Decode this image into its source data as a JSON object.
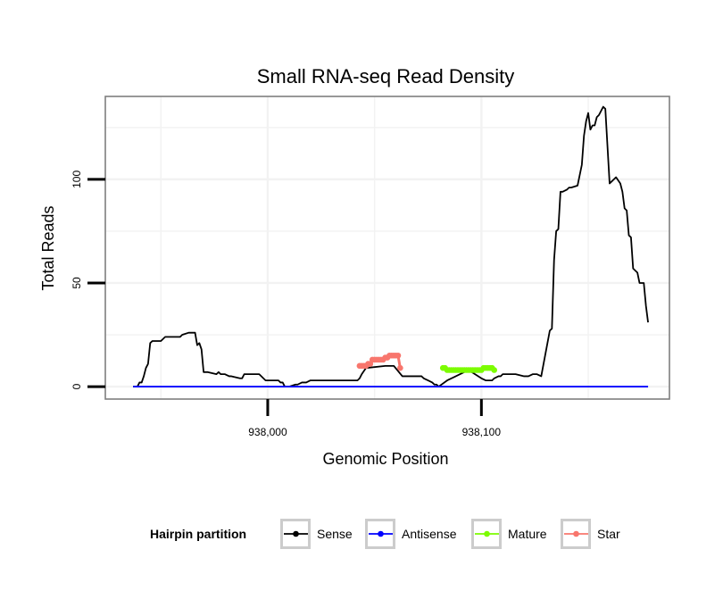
{
  "chart_data": {
    "type": "line",
    "title": "Small RNA-seq Read Density",
    "xlabel": "Genomic Position",
    "ylabel": "Total Reads",
    "xlim": [
      937924,
      938188
    ],
    "ylim": [
      -6,
      140
    ],
    "x_ticks": [
      938000,
      938100
    ],
    "x_tick_labels": [
      "938,000",
      "938,100"
    ],
    "y_ticks": [
      0,
      50,
      100
    ],
    "y_tick_labels": [
      "0",
      "50",
      "100"
    ],
    "grid": true,
    "legend": {
      "title": "Hairpin partition",
      "position": "bottom",
      "entries": [
        {
          "name": "Sense",
          "color": "#000000"
        },
        {
          "name": "Antisense",
          "color": "#0000ff"
        },
        {
          "name": "Mature",
          "color": "#7cfc00"
        },
        {
          "name": "Star",
          "color": "#f8766d"
        }
      ]
    },
    "series": [
      {
        "name": "Sense",
        "color": "#000000",
        "x": [
          937937,
          937939,
          937940,
          937941,
          937942,
          937943,
          937944,
          937945,
          937946,
          937947,
          937950,
          937952,
          937953,
          937957,
          937959,
          937960,
          937963,
          937966,
          937967,
          937968,
          937969,
          937970,
          937971,
          937972,
          937976,
          937977,
          937978,
          937979,
          937980,
          937982,
          937983,
          937987,
          937988,
          937989,
          937990,
          937996,
          937999,
          938005,
          938006,
          938007,
          938008,
          938010,
          938013,
          938014,
          938016,
          938017,
          938018,
          938020,
          938021,
          938023,
          938030,
          938032,
          938033,
          938034,
          938039,
          938042,
          938043,
          938044,
          938046,
          938055,
          938059,
          938063,
          938067,
          938070,
          938072,
          938073,
          938075,
          938077,
          938078,
          938079,
          938080,
          938084,
          938094,
          938100,
          938102,
          938104,
          938105,
          938106,
          938108,
          938109,
          938110,
          938113,
          938116,
          938120,
          938121,
          938122,
          938124,
          938126,
          938128,
          938132,
          938133,
          938134,
          938135,
          938136,
          938137,
          938138,
          938140,
          938141,
          938142,
          938145,
          938147,
          938148,
          938149,
          938150,
          938151,
          938152,
          938153,
          938154,
          938155,
          938156,
          938157,
          938158,
          938160,
          938161,
          938162,
          938163,
          938165,
          938166,
          938167,
          938168,
          938169,
          938170,
          938171,
          938173,
          938174,
          938175,
          938176,
          938177,
          938178
        ],
        "y": [
          0,
          0,
          2,
          2,
          5,
          9,
          11,
          21,
          22,
          22,
          22,
          24,
          24,
          24,
          24,
          25,
          26,
          26,
          20,
          21,
          18,
          7,
          7,
          7,
          6,
          7,
          6,
          6,
          6,
          5,
          5,
          4,
          4,
          6,
          6,
          6,
          3,
          3,
          2,
          2,
          0,
          0,
          1,
          1,
          2,
          2,
          2,
          3,
          3,
          3,
          3,
          3,
          3,
          3,
          3,
          3,
          4,
          6,
          9,
          10,
          10,
          5,
          5,
          5,
          5,
          4,
          3,
          2,
          1,
          1,
          0,
          3,
          8,
          4,
          3,
          3,
          3,
          4,
          5,
          5,
          6,
          6,
          6,
          5,
          5,
          5,
          6,
          6,
          5,
          27,
          28,
          61,
          75,
          76,
          94,
          94,
          95,
          96,
          96,
          97,
          107,
          121,
          128,
          132,
          124,
          126,
          126,
          130,
          131,
          133,
          135,
          134,
          98,
          99,
          100,
          101,
          98,
          94,
          86,
          85,
          73,
          72,
          57,
          55,
          50,
          50,
          50,
          39,
          31
        ],
        "markers": false
      },
      {
        "name": "Antisense",
        "color": "#0000ff",
        "x": [
          937937,
          938178
        ],
        "y": [
          0,
          0
        ],
        "markers": false
      },
      {
        "name": "Mature",
        "color": "#7cfc00",
        "x": [
          938082,
          938083,
          938084,
          938085,
          938086,
          938087,
          938088,
          938089,
          938090,
          938091,
          938092,
          938093,
          938094,
          938095,
          938096,
          938097,
          938098,
          938099,
          938100,
          938101,
          938102,
          938103,
          938104,
          938105,
          938106
        ],
        "y": [
          9,
          9,
          8,
          8,
          8,
          8,
          8,
          8,
          8,
          8,
          8,
          8,
          8,
          8,
          8,
          8,
          8,
          8,
          8,
          9,
          9,
          9,
          9,
          9,
          8
        ],
        "markers": true
      },
      {
        "name": "Star",
        "color": "#f8766d",
        "x": [
          938043,
          938044,
          938045,
          938046,
          938047,
          938048,
          938049,
          938050,
          938051,
          938052,
          938053,
          938054,
          938055,
          938056,
          938057,
          938058,
          938059,
          938060,
          938061,
          938062
        ],
        "y": [
          10,
          10,
          10,
          10,
          11,
          11,
          13,
          13,
          13,
          13,
          13,
          13,
          14,
          14,
          15,
          15,
          15,
          15,
          15,
          9
        ],
        "markers": true
      }
    ]
  }
}
